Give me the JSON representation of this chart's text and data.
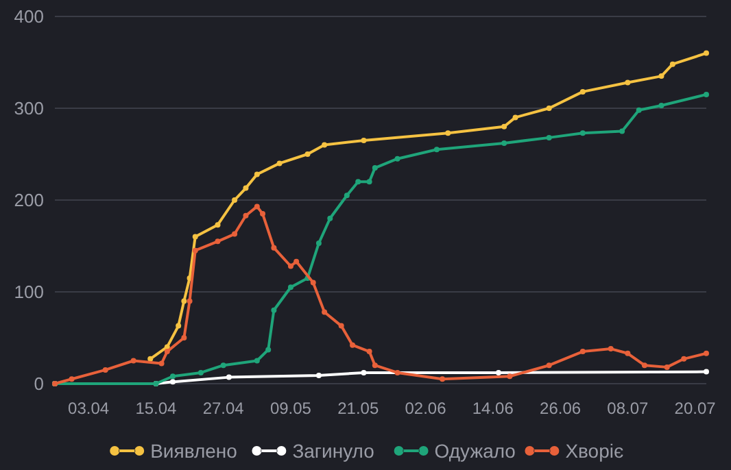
{
  "chart_data": {
    "type": "line",
    "marker": "circle",
    "grid": "y",
    "legend": "bottom",
    "line_style": "solid",
    "xlim": [
      "--03-28",
      "--07-22"
    ],
    "ylim": [
      0,
      400
    ],
    "yticks": [
      0,
      100,
      200,
      300,
      400
    ],
    "xticks": [
      {
        "value": "--04-03",
        "label": "03.04"
      },
      {
        "value": "--04-15",
        "label": "15.04"
      },
      {
        "value": "--04-27",
        "label": "27.04"
      },
      {
        "value": "--05-09",
        "label": "09.05"
      },
      {
        "value": "--05-21",
        "label": "21.05"
      },
      {
        "value": "--06-02",
        "label": "02.06"
      },
      {
        "value": "--06-14",
        "label": "14.06"
      },
      {
        "value": "--06-26",
        "label": "26.06"
      },
      {
        "value": "--07-08",
        "label": "08.07"
      },
      {
        "value": "--07-20",
        "label": "20.07"
      }
    ],
    "series": [
      {
        "name": "Виявлено",
        "color": "#f5c242",
        "x": [
          "--03-28",
          "--03-31",
          "--04-06",
          "--04-11",
          "--04-14",
          "--04-17",
          "--04-19",
          "--04-20",
          "--04-21",
          "--04-22",
          "--04-26",
          "--04-29",
          "--05-01",
          "--05-03",
          "--05-07",
          "--05-12",
          "--05-15",
          "--05-22",
          "--06-06",
          "--06-16",
          "--06-18",
          "--06-24",
          "--06-30",
          "--07-08",
          "--07-14",
          "--07-16",
          "--07-22"
        ],
        "values": [
          0,
          null,
          null,
          null,
          27,
          40,
          63,
          90,
          115,
          160,
          173,
          200,
          213,
          228,
          240,
          250,
          260,
          265,
          273,
          280,
          290,
          300,
          318,
          328,
          335,
          348,
          360
        ]
      },
      {
        "name": "Загинуло",
        "color": "#ffffff",
        "x": [
          "--03-28",
          "--04-15",
          "--04-18",
          "--04-28",
          "--05-14",
          "--05-22",
          "--06-15",
          "--07-22"
        ],
        "values": [
          0,
          0,
          2,
          7,
          9,
          12,
          12,
          13
        ]
      },
      {
        "name": "Одужало",
        "color": "#1fa57a",
        "x": [
          "--03-28",
          "--04-15",
          "--04-18",
          "--04-23",
          "--04-27",
          "--05-03",
          "--05-05",
          "--05-06",
          "--05-09",
          "--05-12",
          "--05-14",
          "--05-16",
          "--05-19",
          "--05-21",
          "--05-23",
          "--05-24",
          "--05-28",
          "--06-04",
          "--06-16",
          "--06-24",
          "--06-30",
          "--07-07",
          "--07-10",
          "--07-14",
          "--07-22"
        ],
        "values": [
          0,
          0,
          8,
          12,
          20,
          25,
          37,
          80,
          105,
          115,
          153,
          180,
          205,
          220,
          220,
          235,
          245,
          255,
          262,
          268,
          273,
          275,
          298,
          303,
          315
        ]
      },
      {
        "name": "Хворіє",
        "color": "#e8613a",
        "x": [
          "--03-28",
          "--03-31",
          "--04-06",
          "--04-11",
          "--04-16",
          "--04-17",
          "--04-20",
          "--04-21",
          "--04-22",
          "--04-26",
          "--04-29",
          "--05-01",
          "--05-03",
          "--05-04",
          "--05-06",
          "--05-09",
          "--05-10",
          "--05-13",
          "--05-15",
          "--05-18",
          "--05-20",
          "--05-23",
          "--05-24",
          "--05-28",
          "--06-05",
          "--06-17",
          "--06-24",
          "--06-30",
          "--07-05",
          "--07-08",
          "--07-11",
          "--07-15",
          "--07-18",
          "--07-22"
        ],
        "values": [
          0,
          5,
          15,
          25,
          22,
          35,
          50,
          90,
          145,
          155,
          163,
          183,
          193,
          185,
          148,
          128,
          133,
          110,
          78,
          63,
          42,
          35,
          20,
          12,
          5,
          8,
          20,
          35,
          38,
          33,
          20,
          18,
          27,
          33
        ]
      }
    ]
  }
}
